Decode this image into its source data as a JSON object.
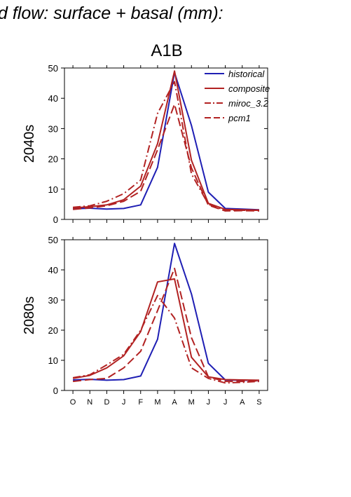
{
  "figure": {
    "heading": "d flow: surface + basal (mm):",
    "subtitle": "A1B"
  },
  "colors": {
    "historical": "#1f1fb4",
    "projection": "#b22222",
    "axis": "#000000"
  },
  "chart_data": [
    {
      "type": "line",
      "panel_label": "2040s",
      "categories": [
        "O",
        "N",
        "D",
        "J",
        "F",
        "M",
        "A",
        "M",
        "J",
        "J",
        "A",
        "S"
      ],
      "ylim": [
        0,
        50
      ],
      "yticks": [
        0,
        10,
        20,
        30,
        40,
        50
      ],
      "grid": false,
      "legend": "top-right",
      "series": [
        {
          "name": "historical",
          "style": "solid",
          "color": "#1f1fb4",
          "values": [
            3.5,
            3.7,
            3.4,
            3.6,
            4.8,
            17.2,
            48.5,
            31.0,
            9.0,
            3.6,
            3.4,
            3.2
          ]
        },
        {
          "name": "composite",
          "style": "solid",
          "color": "#b22222",
          "values": [
            3.8,
            4.2,
            4.8,
            6.5,
            11.0,
            25.0,
            49.0,
            19.5,
            5.3,
            3.3,
            3.2,
            3.1
          ]
        },
        {
          "name": "miroc_3.2",
          "style": "dashdot",
          "color": "#b22222",
          "values": [
            4.0,
            4.5,
            6.0,
            8.5,
            13.0,
            35.0,
            45.5,
            15.0,
            5.0,
            3.0,
            3.0,
            3.0
          ]
        },
        {
          "name": "pcm1",
          "style": "dashed",
          "color": "#b22222",
          "values": [
            3.3,
            3.8,
            4.5,
            6.0,
            9.3,
            23.0,
            38.0,
            17.0,
            4.7,
            2.8,
            2.9,
            2.8
          ]
        }
      ]
    },
    {
      "type": "line",
      "panel_label": "2080s",
      "categories": [
        "O",
        "N",
        "D",
        "J",
        "F",
        "M",
        "A",
        "M",
        "J",
        "J",
        "A",
        "S"
      ],
      "ylim": [
        0,
        50
      ],
      "yticks": [
        0,
        10,
        20,
        30,
        40,
        50
      ],
      "grid": false,
      "legend": "none",
      "series": [
        {
          "name": "historical",
          "style": "solid",
          "color": "#1f1fb4",
          "values": [
            3.5,
            3.7,
            3.4,
            3.6,
            4.8,
            17.0,
            48.8,
            32.0,
            9.0,
            3.5,
            3.4,
            3.3
          ]
        },
        {
          "name": "composite",
          "style": "solid",
          "color": "#b22222",
          "values": [
            4.0,
            5.0,
            7.5,
            11.5,
            19.5,
            36.0,
            37.0,
            11.0,
            4.5,
            3.6,
            3.5,
            3.4
          ]
        },
        {
          "name": "miroc_3.2",
          "style": "dashdot",
          "color": "#b22222",
          "values": [
            4.2,
            5.2,
            8.5,
            12.0,
            20.0,
            31.5,
            24.0,
            7.5,
            4.0,
            2.5,
            2.7,
            3.0
          ]
        },
        {
          "name": "pcm1",
          "style": "dashed",
          "color": "#b22222",
          "values": [
            3.0,
            3.6,
            4.0,
            7.5,
            13.0,
            26.5,
            40.5,
            17.5,
            4.5,
            3.0,
            3.0,
            3.2
          ]
        }
      ]
    }
  ]
}
